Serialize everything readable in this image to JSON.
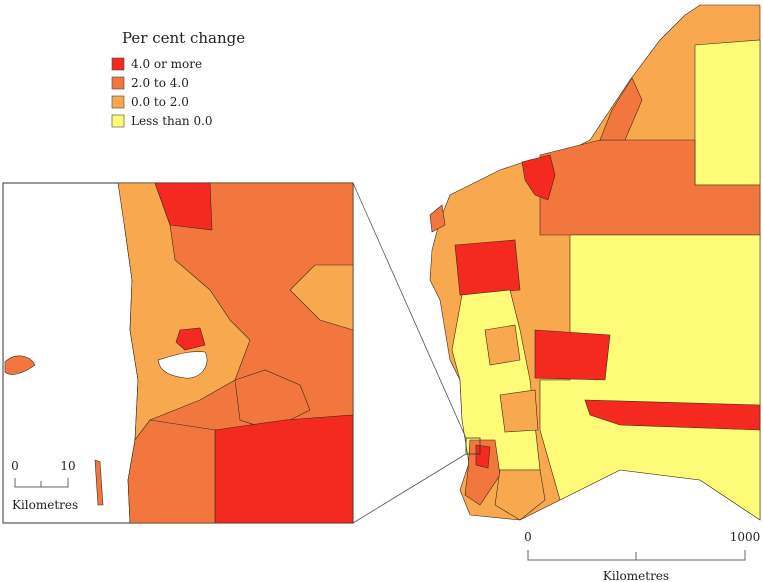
{
  "legend": {
    "title": "Per cent change",
    "items": [
      {
        "label": "4.0 or more",
        "color": "#f42a20"
      },
      {
        "label": "2.0 to 4.0",
        "color": "#f2773e"
      },
      {
        "label": "0.0 to 2.0",
        "color": "#f8a84e"
      },
      {
        "label": "Less than 0.0",
        "color": "#fdfb78"
      }
    ]
  },
  "main_scale": {
    "start": "0",
    "end": "1000",
    "unit": "Kilometres"
  },
  "inset_scale": {
    "start": "0",
    "end": "10",
    "unit": "Kilometres"
  }
}
